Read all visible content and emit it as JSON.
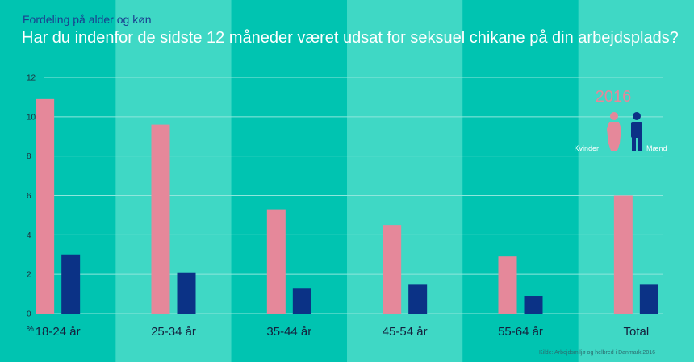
{
  "header": {
    "subtitle": "Fordeling på alder og køn",
    "title": "Har du indenfor de sidste 12 måneder været udsat for seksuel chikane på din arbejdsplads?"
  },
  "colors": {
    "background_dark": "#00c4b1",
    "background_light": "#3fd8c5",
    "women": "#e5889a",
    "men": "#0b3286",
    "gridline": "#8ee6dc"
  },
  "legend": {
    "year": "2016",
    "women_label": "Kvinder",
    "men_label": "Mænd",
    "women_icon": "woman-icon",
    "men_icon": "man-icon"
  },
  "axis": {
    "unit_label": "%"
  },
  "source": "Kilde: Arbejdsmiljø og helbred i Danmark 2016",
  "chart_data": {
    "type": "bar",
    "title": "Har du indenfor de sidste 12 måneder været udsat for seksuel chikane på din arbejdsplads?",
    "subtitle": "Fordeling på alder og køn",
    "categories": [
      "18-24 år",
      "25-34 år",
      "35-44 år",
      "45-54 år",
      "55-64 år",
      "Total"
    ],
    "series": [
      {
        "name": "Kvinder",
        "values": [
          10.9,
          9.6,
          5.3,
          4.5,
          2.9,
          6.0
        ]
      },
      {
        "name": "Mænd",
        "values": [
          3.0,
          2.1,
          1.3,
          1.5,
          0.9,
          1.5
        ]
      }
    ],
    "ylabel": "%",
    "ylim": [
      0,
      12
    ],
    "yticks": [
      0,
      2,
      4,
      6,
      8,
      10,
      12
    ],
    "grid": true,
    "legend_position": "top-right"
  }
}
